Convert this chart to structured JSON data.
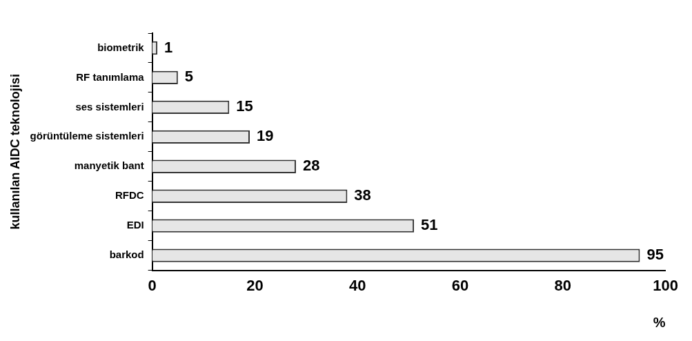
{
  "chart_data": {
    "type": "bar",
    "orientation": "horizontal",
    "ylabel": "kullanılan AIDC teknolojisi",
    "xlabel": "%",
    "categories": [
      "biometrik",
      "RF tanımlama",
      "ses sistemleri",
      "görüntüleme sistemleri",
      "manyetik bant",
      "RFDC",
      "EDI",
      "barkod"
    ],
    "values": [
      1,
      5,
      15,
      19,
      28,
      38,
      51,
      95
    ],
    "color": "#e6e6e6",
    "xlim": [
      0,
      100
    ],
    "xticks": [
      0,
      20,
      40,
      60,
      80,
      100
    ],
    "data_labels": true,
    "grid": false,
    "legend": false
  }
}
